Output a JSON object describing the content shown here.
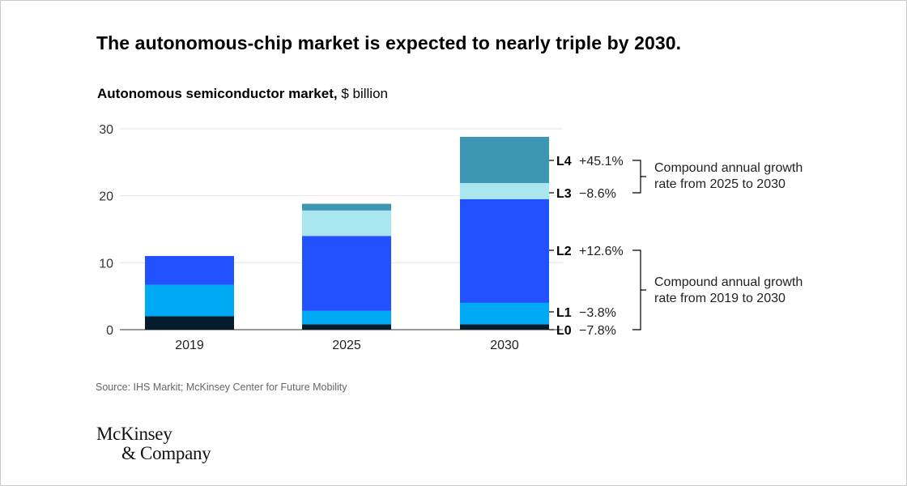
{
  "headline": "The autonomous-chip market is expected to nearly triple by 2030.",
  "subtitle": {
    "bold": "Autonomous semiconductor market,",
    "unit": "$ billion"
  },
  "source": "Source: IHS Markit; McKinsey Center for Future Mobility",
  "logo": {
    "line1": "McKinsey",
    "line2": "& Company"
  },
  "colors": {
    "L0": "#051c2c",
    "L1": "#00a9f4",
    "L2": "#2251ff",
    "L3": "#aae6f0",
    "L4": "#3c96b4",
    "grid": "#e6e6e6",
    "axis": "#333333"
  },
  "chart_data": {
    "type": "bar",
    "stacked": true,
    "categories": [
      "2019",
      "2025",
      "2030"
    ],
    "ylim": [
      0,
      30
    ],
    "yticks": [
      0,
      10,
      20,
      30
    ],
    "grid": true,
    "series": [
      {
        "name": "L0",
        "values": [
          2.0,
          0.8,
          0.8
        ]
      },
      {
        "name": "L1",
        "values": [
          4.7,
          2.0,
          3.2
        ]
      },
      {
        "name": "L2",
        "values": [
          4.3,
          11.2,
          15.5
        ]
      },
      {
        "name": "L3",
        "values": [
          0,
          3.8,
          2.4
        ]
      },
      {
        "name": "L4",
        "values": [
          0,
          1.0,
          6.9
        ]
      }
    ],
    "growth_labels": [
      {
        "series": "L4",
        "value": "+45.1%"
      },
      {
        "series": "L3",
        "value": "−8.6%"
      },
      {
        "series": "L2",
        "value": "+12.6%"
      },
      {
        "series": "L1",
        "value": "−3.8%"
      },
      {
        "series": "L0",
        "value": "−7.8%"
      }
    ],
    "brackets": [
      {
        "text": "Compound annual growth rate from 2025 to 2030",
        "lines": [
          "Compound annual growth",
          "rate from 2025 to 2030"
        ],
        "covers": [
          "L4",
          "L3"
        ]
      },
      {
        "text": "Compound annual growth rate from 2019 to 2030",
        "lines": [
          "Compound annual growth",
          "rate from 2019 to 2030"
        ],
        "covers": [
          "L2",
          "L1",
          "L0"
        ]
      }
    ]
  }
}
